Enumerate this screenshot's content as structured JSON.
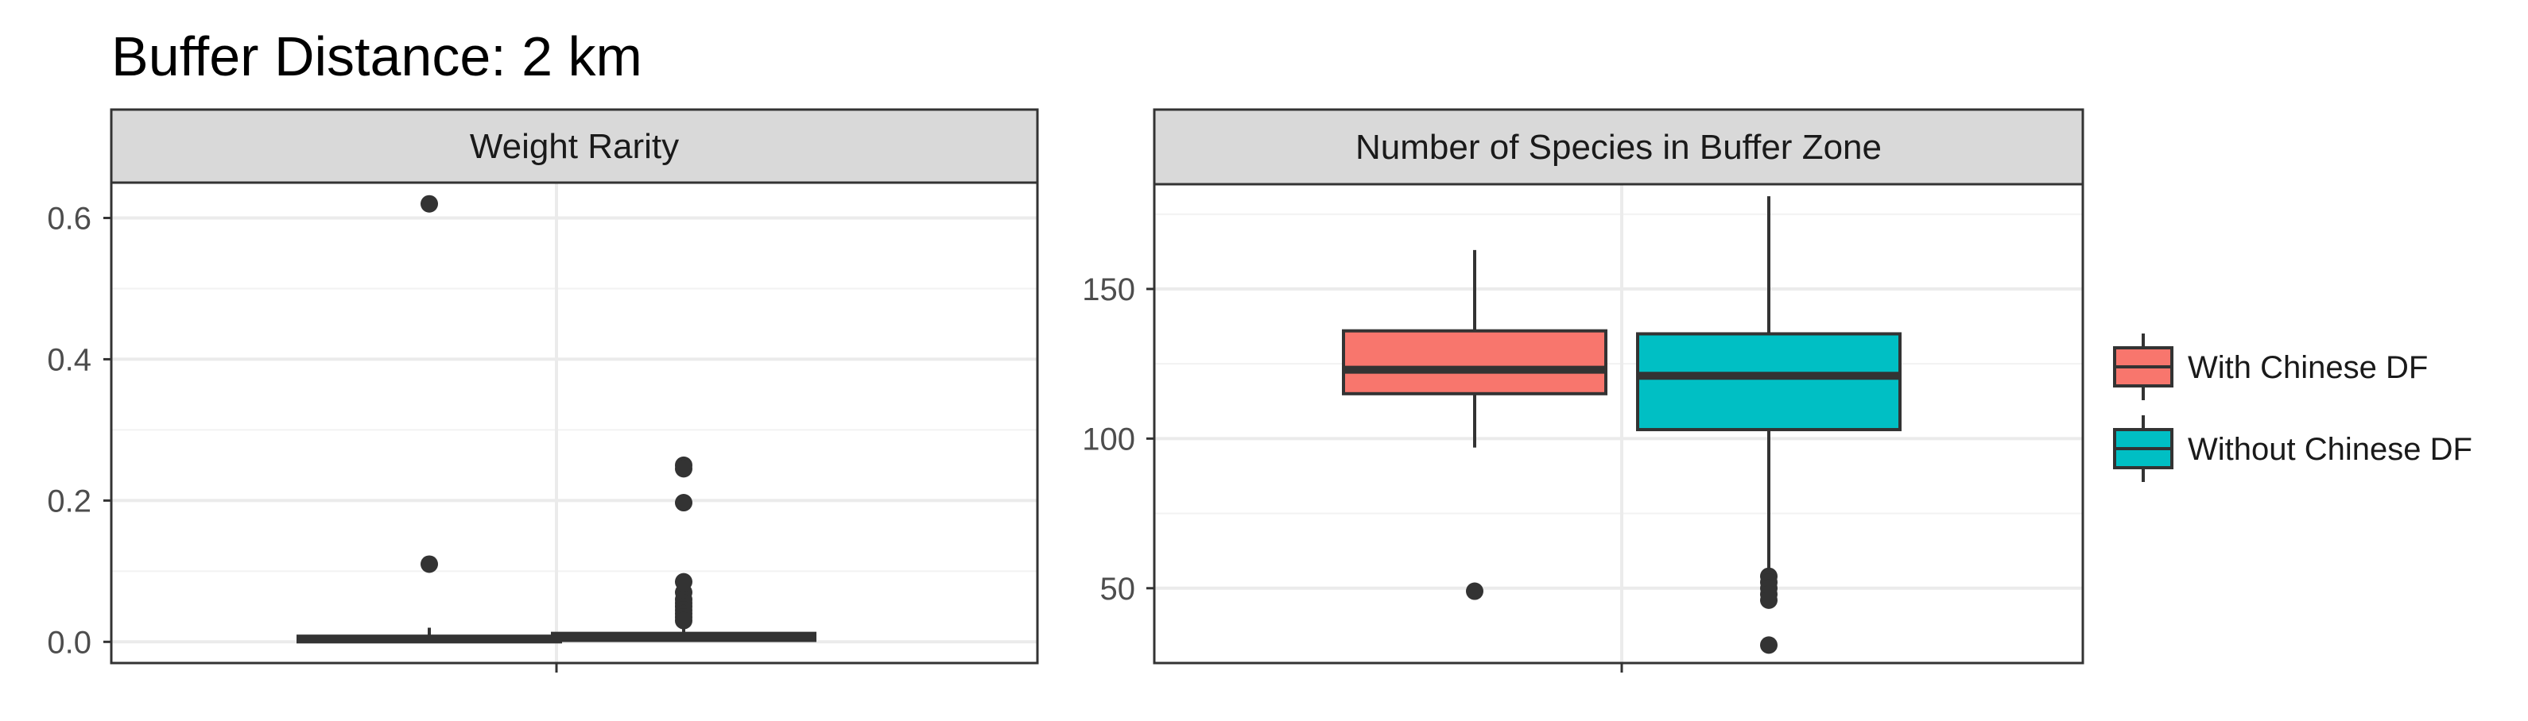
{
  "title": "Buffer Distance: 2 km",
  "colors": {
    "with": "#F8766D",
    "without": "#00BFC4",
    "strip_bg": "#D9D9D9",
    "grid": "#EBEBEB",
    "box_line": "#333333"
  },
  "legend": {
    "items": [
      {
        "key": "with",
        "label": "With Chinese DF"
      },
      {
        "key": "without",
        "label": "Without Chinese DF"
      }
    ]
  },
  "chart_data": [
    {
      "type": "box",
      "panel_title": "Weight Rarity",
      "ylim": [
        -0.03,
        0.65
      ],
      "y_ticks": [
        0.0,
        0.2,
        0.4,
        0.6
      ],
      "y_tick_labels": [
        "0.0",
        "0.2",
        "0.4",
        "0.6"
      ],
      "series": [
        {
          "key": "with",
          "q1": 0.0,
          "median": 0.004,
          "q3": 0.008,
          "whisker_low": 0.0,
          "whisker_high": 0.02,
          "outliers": [
            0.62,
            0.11
          ]
        },
        {
          "key": "without",
          "q1": 0.002,
          "median": 0.007,
          "q3": 0.012,
          "whisker_low": 0.0,
          "whisker_high": 0.022,
          "outliers": [
            0.25,
            0.245,
            0.197,
            0.085,
            0.07,
            0.06,
            0.055,
            0.05,
            0.045,
            0.04,
            0.035,
            0.03
          ]
        }
      ]
    },
    {
      "type": "box",
      "panel_title": "Number of Species in Buffer Zone",
      "ylim": [
        25,
        185
      ],
      "y_ticks": [
        50,
        100,
        150
      ],
      "y_tick_labels": [
        "50",
        "100",
        "150"
      ],
      "series": [
        {
          "key": "with",
          "q1": 115,
          "median": 123,
          "q3": 136,
          "whisker_low": 97,
          "whisker_high": 163,
          "outliers": [
            49
          ]
        },
        {
          "key": "without",
          "q1": 103,
          "median": 121,
          "q3": 135,
          "whisker_low": 56,
          "whisker_high": 181,
          "outliers": [
            54,
            52,
            50,
            48,
            46,
            31
          ]
        }
      ]
    }
  ]
}
